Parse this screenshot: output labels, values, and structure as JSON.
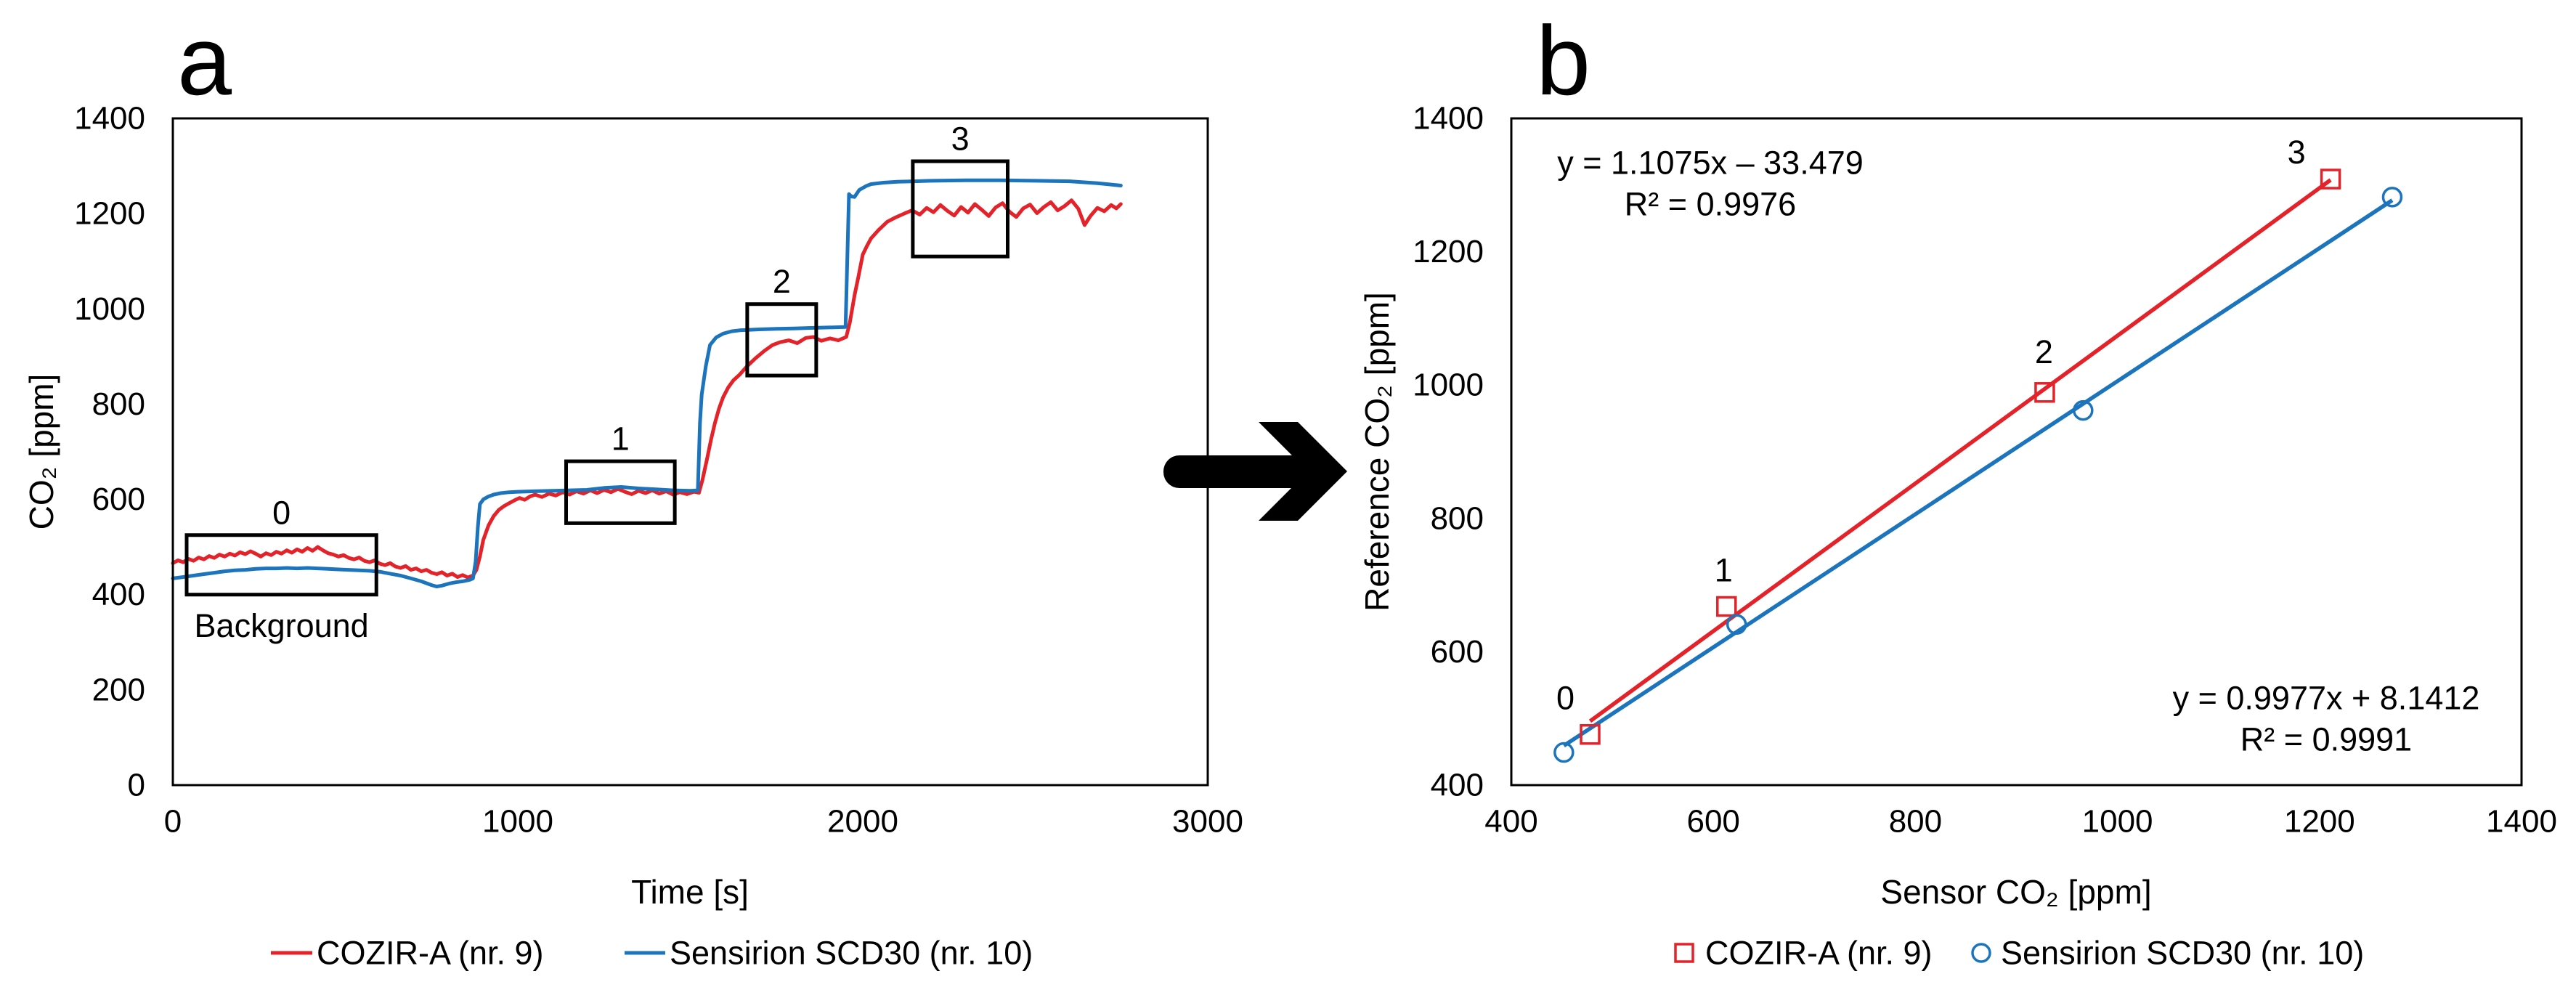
{
  "chart_data": [
    {
      "panel_label": "a",
      "type": "line",
      "xlabel": "Time [s]",
      "ylabel": "CO₂ [ppm]",
      "xlim": [
        0,
        3000
      ],
      "ylim": [
        0,
        1400
      ],
      "xticks": [
        "0",
        "1000",
        "2000",
        "3000"
      ],
      "yticks": [
        "0",
        "200",
        "400",
        "600",
        "800",
        "1000",
        "1200",
        "1400"
      ],
      "grid": false,
      "legend": "bottom",
      "series": [
        {
          "name": "COZIR-A (nr. 9)",
          "color": "#E42229",
          "points": [
            [
              0,
              466
            ],
            [
              15,
              472
            ],
            [
              30,
              468
            ],
            [
              45,
              475
            ],
            [
              60,
              471
            ],
            [
              75,
              478
            ],
            [
              90,
              474
            ],
            [
              105,
              481
            ],
            [
              120,
              477
            ],
            [
              135,
              484
            ],
            [
              150,
              480
            ],
            [
              165,
              486
            ],
            [
              180,
              482
            ],
            [
              195,
              489
            ],
            [
              210,
              485
            ],
            [
              225,
              491
            ],
            [
              240,
              486
            ],
            [
              255,
              480
            ],
            [
              270,
              487
            ],
            [
              285,
              483
            ],
            [
              300,
              490
            ],
            [
              315,
              486
            ],
            [
              330,
              493
            ],
            [
              345,
              488
            ],
            [
              360,
              495
            ],
            [
              375,
              490
            ],
            [
              390,
              498
            ],
            [
              405,
              492
            ],
            [
              420,
              500
            ],
            [
              435,
              493
            ],
            [
              450,
              487
            ],
            [
              465,
              484
            ],
            [
              480,
              480
            ],
            [
              495,
              483
            ],
            [
              510,
              477
            ],
            [
              525,
              474
            ],
            [
              540,
              478
            ],
            [
              555,
              471
            ],
            [
              570,
              468
            ],
            [
              585,
              472
            ],
            [
              600,
              465
            ],
            [
              615,
              462
            ],
            [
              630,
              466
            ],
            [
              645,
              459
            ],
            [
              660,
              456
            ],
            [
              675,
              460
            ],
            [
              690,
              452
            ],
            [
              705,
              455
            ],
            [
              720,
              449
            ],
            [
              735,
              452
            ],
            [
              750,
              446
            ],
            [
              765,
              443
            ],
            [
              780,
              447
            ],
            [
              795,
              440
            ],
            [
              810,
              444
            ],
            [
              825,
              437
            ],
            [
              840,
              441
            ],
            [
              855,
              436
            ],
            [
              870,
              440
            ],
            [
              880,
              452
            ],
            [
              890,
              480
            ],
            [
              900,
              515
            ],
            [
              915,
              545
            ],
            [
              930,
              565
            ],
            [
              945,
              578
            ],
            [
              960,
              586
            ],
            [
              975,
              592
            ],
            [
              990,
              598
            ],
            [
              1005,
              603
            ],
            [
              1020,
              599
            ],
            [
              1035,
              606
            ],
            [
              1050,
              610
            ],
            [
              1070,
              605
            ],
            [
              1090,
              612
            ],
            [
              1110,
              608
            ],
            [
              1130,
              615
            ],
            [
              1150,
              610
            ],
            [
              1170,
              617
            ],
            [
              1190,
              612
            ],
            [
              1210,
              619
            ],
            [
              1230,
              613
            ],
            [
              1250,
              620
            ],
            [
              1270,
              615
            ],
            [
              1290,
              622
            ],
            [
              1310,
              616
            ],
            [
              1330,
              611
            ],
            [
              1350,
              618
            ],
            [
              1370,
              613
            ],
            [
              1390,
              619
            ],
            [
              1410,
              612
            ],
            [
              1430,
              617
            ],
            [
              1450,
              610
            ],
            [
              1470,
              615
            ],
            [
              1490,
              611
            ],
            [
              1510,
              616
            ],
            [
              1525,
              614
            ],
            [
              1535,
              640
            ],
            [
              1548,
              683
            ],
            [
              1560,
              725
            ],
            [
              1571,
              759
            ],
            [
              1583,
              790
            ],
            [
              1595,
              814
            ],
            [
              1610,
              835
            ],
            [
              1625,
              850
            ],
            [
              1643,
              862
            ],
            [
              1665,
              880
            ],
            [
              1690,
              897
            ],
            [
              1715,
              912
            ],
            [
              1738,
              924
            ],
            [
              1760,
              930
            ],
            [
              1786,
              934
            ],
            [
              1810,
              928
            ],
            [
              1835,
              939
            ],
            [
              1857,
              941
            ],
            [
              1880,
              933
            ],
            [
              1905,
              938
            ],
            [
              1929,
              934
            ],
            [
              1952,
              941
            ],
            [
              1962,
              970
            ],
            [
              1976,
              1028
            ],
            [
              1988,
              1070
            ],
            [
              2000,
              1114
            ],
            [
              2012,
              1132
            ],
            [
              2024,
              1148
            ],
            [
              2045,
              1165
            ],
            [
              2071,
              1183
            ],
            [
              2095,
              1192
            ],
            [
              2120,
              1200
            ],
            [
              2143,
              1207
            ],
            [
              2165,
              1198
            ],
            [
              2185,
              1212
            ],
            [
              2205,
              1203
            ],
            [
              2225,
              1218
            ],
            [
              2245,
              1206
            ],
            [
              2265,
              1196
            ],
            [
              2285,
              1214
            ],
            [
              2305,
              1202
            ],
            [
              2325,
              1220
            ],
            [
              2345,
              1208
            ],
            [
              2365,
              1195
            ],
            [
              2385,
              1213
            ],
            [
              2405,
              1222
            ],
            [
              2425,
              1204
            ],
            [
              2445,
              1193
            ],
            [
              2465,
              1211
            ],
            [
              2485,
              1219
            ],
            [
              2505,
              1201
            ],
            [
              2525,
              1214
            ],
            [
              2545,
              1224
            ],
            [
              2565,
              1207
            ],
            [
              2585,
              1216
            ],
            [
              2605,
              1228
            ],
            [
              2625,
              1210
            ],
            [
              2643,
              1176
            ],
            [
              2660,
              1195
            ],
            [
              2680,
              1212
            ],
            [
              2700,
              1205
            ],
            [
              2720,
              1218
            ],
            [
              2735,
              1211
            ],
            [
              2748,
              1220
            ]
          ]
        },
        {
          "name": "Sensirion SCD30 (nr. 10)",
          "color": "#1C75BC",
          "points": [
            [
              0,
              434
            ],
            [
              30,
              437
            ],
            [
              60,
              440
            ],
            [
              90,
              443
            ],
            [
              120,
              446
            ],
            [
              150,
              449
            ],
            [
              180,
              451
            ],
            [
              210,
              452
            ],
            [
              240,
              454
            ],
            [
              270,
              455
            ],
            [
              300,
              455
            ],
            [
              330,
              456
            ],
            [
              360,
              455
            ],
            [
              390,
              456
            ],
            [
              420,
              455
            ],
            [
              450,
              454
            ],
            [
              480,
              453
            ],
            [
              510,
              452
            ],
            [
              540,
              451
            ],
            [
              570,
              450
            ],
            [
              600,
              448
            ],
            [
              630,
              444
            ],
            [
              660,
              440
            ],
            [
              690,
              434
            ],
            [
              720,
              428
            ],
            [
              750,
              420
            ],
            [
              765,
              417
            ],
            [
              780,
              419
            ],
            [
              800,
              423
            ],
            [
              820,
              426
            ],
            [
              840,
              428
            ],
            [
              860,
              431
            ],
            [
              870,
              434
            ],
            [
              878,
              470
            ],
            [
              884,
              540
            ],
            [
              890,
              590
            ],
            [
              900,
              600
            ],
            [
              915,
              606
            ],
            [
              930,
              610
            ],
            [
              950,
              613
            ],
            [
              975,
              615
            ],
            [
              1000,
              616
            ],
            [
              1050,
              617
            ],
            [
              1100,
              618
            ],
            [
              1150,
              619
            ],
            [
              1200,
              620
            ],
            [
              1250,
              624
            ],
            [
              1300,
              626
            ],
            [
              1350,
              623
            ],
            [
              1400,
              621
            ],
            [
              1450,
              619
            ],
            [
              1500,
              618
            ],
            [
              1522,
              619
            ],
            [
              1528,
              760
            ],
            [
              1533,
              820
            ],
            [
              1545,
              880
            ],
            [
              1557,
              924
            ],
            [
              1575,
              940
            ],
            [
              1595,
              948
            ],
            [
              1620,
              953
            ],
            [
              1643,
              955
            ],
            [
              1700,
              957
            ],
            [
              1750,
              958
            ],
            [
              1800,
              959
            ],
            [
              1850,
              960
            ],
            [
              1900,
              961
            ],
            [
              1950,
              962
            ],
            [
              1955,
              1100
            ],
            [
              1960,
              1241
            ],
            [
              1967,
              1236
            ],
            [
              1976,
              1235
            ],
            [
              1990,
              1250
            ],
            [
              2010,
              1258
            ],
            [
              2024,
              1262
            ],
            [
              2060,
              1265
            ],
            [
              2100,
              1267
            ],
            [
              2150,
              1268
            ],
            [
              2200,
              1269
            ],
            [
              2300,
              1270
            ],
            [
              2400,
              1270
            ],
            [
              2500,
              1269
            ],
            [
              2600,
              1268
            ],
            [
              2680,
              1264
            ],
            [
              2720,
              1261
            ],
            [
              2748,
              1259
            ]
          ]
        }
      ],
      "annotations": [
        {
          "label": "0",
          "x": [
            40,
            590
          ],
          "y": [
            400,
            525
          ],
          "note": "Background"
        },
        {
          "label": "1",
          "x": [
            1140,
            1455
          ],
          "y": [
            550,
            680
          ]
        },
        {
          "label": "2",
          "x": [
            1665,
            1865
          ],
          "y": [
            860,
            1010
          ]
        },
        {
          "label": "3",
          "x": [
            2145,
            2420
          ],
          "y": [
            1110,
            1310
          ]
        }
      ]
    },
    {
      "panel_label": "b",
      "type": "scatter",
      "xlabel": "Sensor CO₂ [ppm]",
      "ylabel": "Reference CO₂ [ppm]",
      "xlim": [
        400,
        1400
      ],
      "ylim": [
        400,
        1400
      ],
      "xticks": [
        "400",
        "600",
        "800",
        "1000",
        "1200",
        "1400"
      ],
      "yticks": [
        "400",
        "600",
        "800",
        "1000",
        "1200",
        "1400"
      ],
      "grid": false,
      "legend": "bottom",
      "series": [
        {
          "name": "COZIR-A (nr. 9)",
          "color": "#E42229",
          "marker": "square",
          "x": [
            478,
            613,
            928,
            1211
          ],
          "y": [
            476,
            668,
            989,
            1309
          ],
          "labels": [
            "0",
            "1",
            "2",
            "3"
          ],
          "trendline": {
            "equation": "y = 1.1075x – 33.479",
            "r2": "R² = 0.9976",
            "slope": 1.1075,
            "intercept": -33.479
          }
        },
        {
          "name": "Sensirion SCD30 (nr. 10)",
          "color": "#1C75BC",
          "marker": "circle",
          "x": [
            452,
            623,
            966,
            1272
          ],
          "y": [
            449,
            641,
            962,
            1282
          ],
          "trendline": {
            "equation": "y = 0.9977x + 8.1412",
            "r2": "R² = 0.9991",
            "slope": 0.9977,
            "intercept": 8.1412
          }
        }
      ]
    }
  ]
}
